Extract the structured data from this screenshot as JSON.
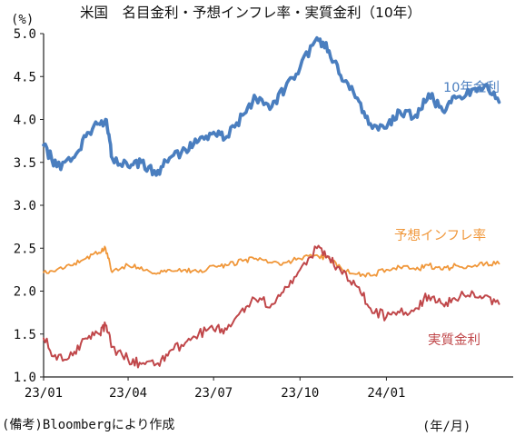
{
  "title": "米国　名目金利・予想インフレ率・実質金利（10年）",
  "unit_label": "(%)",
  "note": "(備考)Bloombergにより作成",
  "x_unit_label": "(年/月)",
  "colors": {
    "nominal": "#4a7ebf",
    "inflation": "#f0973a",
    "real": "#c0474a"
  },
  "chart_data": {
    "type": "line",
    "title": "米国　名目金利・予想インフレ率・実質金利（10年）",
    "xlabel": "(年/月)",
    "ylabel": "(%)",
    "ylim": [
      1.0,
      5.0
    ],
    "y_ticks": [
      "1.0",
      "1.5",
      "2.0",
      "2.5",
      "3.0",
      "3.5",
      "4.0",
      "4.5",
      "5.0"
    ],
    "x_ticks": [
      "23/01",
      "23/04",
      "23/07",
      "23/10",
      "24/01"
    ],
    "grid": false,
    "x": [
      "2023-01-01",
      "2023-01-15",
      "2023-02-01",
      "2023-02-15",
      "2023-03-01",
      "2023-03-08",
      "2023-03-15",
      "2023-04-01",
      "2023-04-15",
      "2023-05-01",
      "2023-05-15",
      "2023-06-01",
      "2023-06-15",
      "2023-07-01",
      "2023-07-15",
      "2023-08-01",
      "2023-08-15",
      "2023-09-01",
      "2023-09-15",
      "2023-10-01",
      "2023-10-19",
      "2023-11-01",
      "2023-11-15",
      "2023-12-01",
      "2023-12-15",
      "2024-01-01",
      "2024-01-15",
      "2024-02-01",
      "2024-02-15",
      "2024-03-01",
      "2024-03-15",
      "2024-04-01",
      "2024-04-15",
      "2024-04-30"
    ],
    "series": [
      {
        "name": "10年金利",
        "color": "#4a7ebf",
        "values": [
          3.7,
          3.45,
          3.55,
          3.8,
          3.95,
          4.0,
          3.55,
          3.45,
          3.5,
          3.35,
          3.55,
          3.65,
          3.75,
          3.85,
          3.8,
          4.05,
          4.25,
          4.15,
          4.35,
          4.6,
          4.95,
          4.8,
          4.45,
          4.25,
          3.95,
          3.9,
          4.1,
          4.05,
          4.3,
          4.1,
          4.25,
          4.35,
          4.4,
          4.2
        ]
      },
      {
        "name": "予想インフレ率",
        "color": "#f0973a",
        "values": [
          2.22,
          2.25,
          2.3,
          2.38,
          2.45,
          2.5,
          2.22,
          2.3,
          2.28,
          2.2,
          2.25,
          2.25,
          2.22,
          2.3,
          2.3,
          2.35,
          2.38,
          2.33,
          2.33,
          2.38,
          2.42,
          2.38,
          2.25,
          2.2,
          2.18,
          2.25,
          2.28,
          2.25,
          2.3,
          2.25,
          2.3,
          2.28,
          2.32,
          2.32
        ]
      },
      {
        "name": "実質金利",
        "color": "#c0474a",
        "values": [
          1.45,
          1.2,
          1.25,
          1.45,
          1.5,
          1.6,
          1.35,
          1.2,
          1.15,
          1.15,
          1.3,
          1.4,
          1.5,
          1.55,
          1.55,
          1.8,
          1.9,
          1.85,
          2.05,
          2.25,
          2.5,
          2.4,
          2.2,
          2.05,
          1.8,
          1.7,
          1.75,
          1.8,
          1.95,
          1.85,
          1.9,
          2.0,
          1.95,
          1.85
        ]
      }
    ]
  }
}
